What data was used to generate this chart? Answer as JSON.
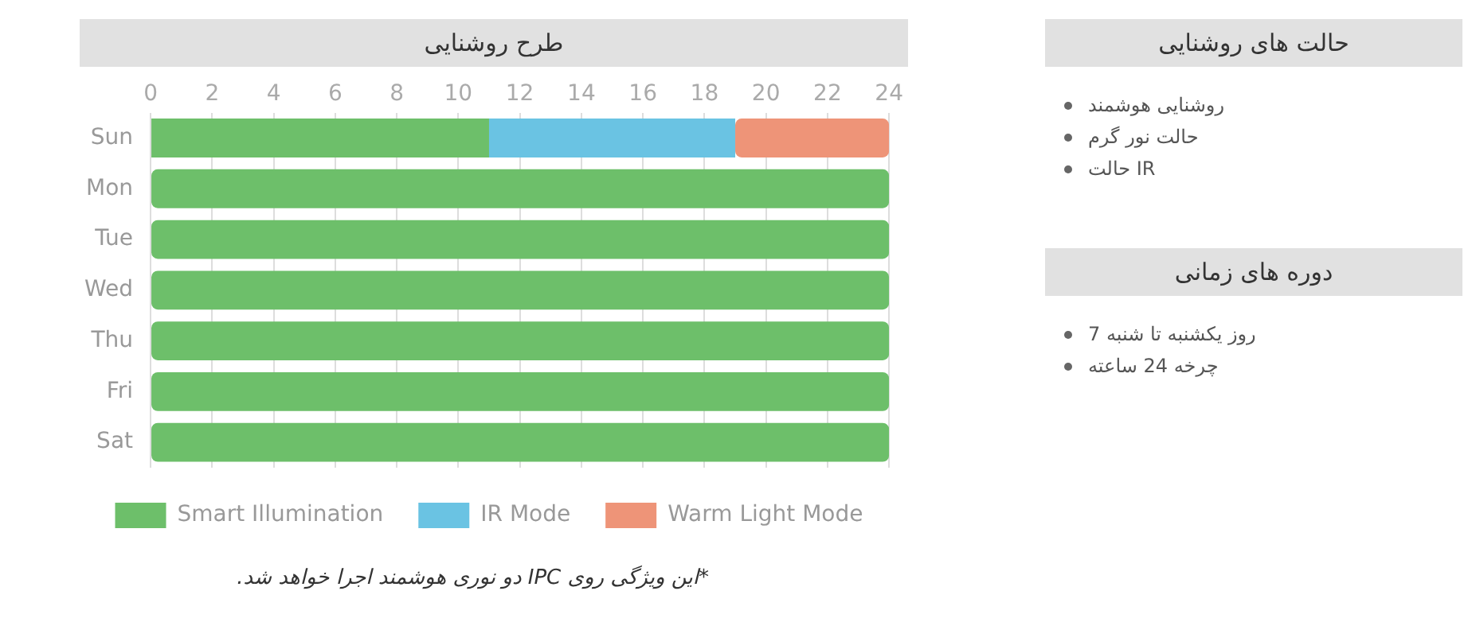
{
  "chart_data": [
    {
      "type": "bar",
      "title": "طرح روشنایی",
      "orientation": "horizontal",
      "stacked": true,
      "categories": [
        "Sun",
        "Mon",
        "Tue",
        "Wed",
        "Thu",
        "Fri",
        "Sat"
      ],
      "series": [
        {
          "name": "Smart Illumination",
          "color": "#6dbf6a",
          "values": [
            11,
            24,
            24,
            24,
            24,
            24,
            24
          ]
        },
        {
          "name": "IR Mode",
          "color": "#6ac3e3",
          "values": [
            8,
            null,
            null,
            null,
            null,
            null,
            null
          ]
        },
        {
          "name": "Warm Light Mode",
          "color": "#ee9478",
          "values": [
            5,
            null,
            null,
            null,
            null,
            null,
            null
          ]
        }
      ],
      "xlim": [
        0,
        24
      ],
      "xticks": [
        0,
        2,
        4,
        6,
        8,
        10,
        12,
        14,
        16,
        18,
        20,
        22,
        24
      ],
      "grid": "x",
      "legend": "bottom",
      "annotations": [
        "*این ویژگی روی IPC دو نوری هوشمند اجرا خواهد شد."
      ]
    },
    {
      "type": "other",
      "title": "حالت های روشنایی",
      "annotations": [
        "روشنایی هوشمند",
        "حالت نور گرم",
        "حالت IR"
      ]
    },
    {
      "type": "other",
      "title": "دوره های زمانی",
      "annotations": [
        "7 روز یکشنبه تا شنبه",
        "چرخه 24 ساعته"
      ]
    }
  ]
}
